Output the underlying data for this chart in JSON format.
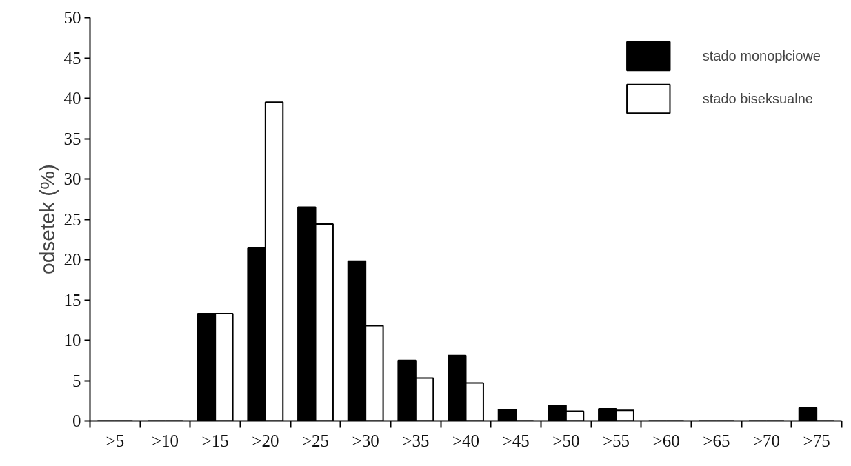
{
  "chart_data": {
    "type": "bar",
    "ylabel": "odsetek (%)",
    "categories": [
      ">5",
      ">10",
      ">15",
      ">20",
      ">25",
      ">30",
      ">35",
      ">40",
      ">45",
      ">50",
      ">55",
      ">60",
      ">65",
      ">70",
      ">75"
    ],
    "series": [
      {
        "name": "stado monopłciowe",
        "color": "#000000",
        "values": [
          0,
          0,
          13.3,
          21.4,
          26.5,
          19.8,
          7.5,
          8.1,
          1.4,
          1.9,
          1.5,
          0,
          0,
          0,
          1.6
        ]
      },
      {
        "name": "stado biseksualne",
        "color": "#ffffff",
        "values": [
          0,
          0,
          13.3,
          39.5,
          24.4,
          11.8,
          5.3,
          4.7,
          0,
          1.2,
          1.3,
          0,
          0,
          0,
          0
        ]
      }
    ],
    "ylim": [
      0,
      50
    ],
    "yticks": [
      0,
      5,
      10,
      15,
      20,
      25,
      30,
      35,
      40,
      45,
      50
    ],
    "grid": false,
    "legend": "top right"
  }
}
